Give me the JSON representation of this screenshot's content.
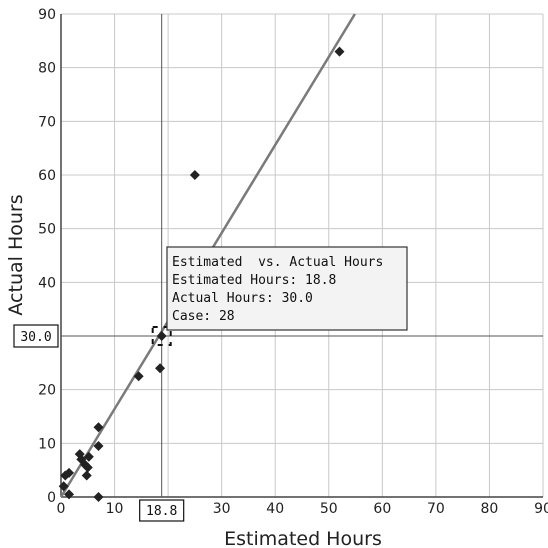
{
  "chart_data": {
    "type": "scatter",
    "title": "",
    "xlabel": "Estimated Hours",
    "ylabel": "Actual Hours",
    "xlim": [
      0,
      90
    ],
    "ylim": [
      0,
      90
    ],
    "x_ticks": [
      0,
      10,
      20,
      30,
      40,
      50,
      60,
      70,
      80,
      90
    ],
    "y_ticks": [
      0,
      10,
      20,
      30,
      40,
      50,
      60,
      70,
      80,
      90
    ],
    "x_tick_labels": [
      "0",
      "10",
      "20",
      "30",
      "40",
      "50",
      "60",
      "70",
      "80",
      "90"
    ],
    "y_tick_labels": [
      "0",
      "10",
      "20",
      "30",
      "40",
      "50",
      "60",
      "70",
      "80",
      "90"
    ],
    "grid": true,
    "points": [
      {
        "x": 0.5,
        "y": 2
      },
      {
        "x": 0.8,
        "y": 4
      },
      {
        "x": 1.5,
        "y": 4.5
      },
      {
        "x": 1.5,
        "y": 0.5
      },
      {
        "x": 3.5,
        "y": 8
      },
      {
        "x": 3.8,
        "y": 7
      },
      {
        "x": 4.5,
        "y": 6
      },
      {
        "x": 5,
        "y": 5.5
      },
      {
        "x": 4.8,
        "y": 4
      },
      {
        "x": 5.2,
        "y": 7.5
      },
      {
        "x": 7,
        "y": 13
      },
      {
        "x": 7,
        "y": 9.5
      },
      {
        "x": 7,
        "y": 0
      },
      {
        "x": 14.5,
        "y": 22.5
      },
      {
        "x": 18.5,
        "y": 24
      },
      {
        "x": 18.8,
        "y": 30
      },
      {
        "x": 25,
        "y": 60
      },
      {
        "x": 52,
        "y": 83
      }
    ],
    "trend_line": {
      "slope": 1.64,
      "intercept": 0
    },
    "crosshair": {
      "x": 18.8,
      "y": 30.0,
      "x_label": "18.8",
      "y_label": "30.0"
    },
    "tooltip": {
      "lines": [
        "Estimated  vs. Actual Hours",
        "Estimated Hours: 18.8",
        "Actual Hours: 30.0",
        "Case: 28"
      ]
    },
    "colors": {
      "point": "#222222",
      "trend_line": "#7a7a7a",
      "grid": "#c8c8c8",
      "axis": "#444444",
      "crosshair": "#555555",
      "tooltip_bg": "#f3f3f3"
    }
  }
}
